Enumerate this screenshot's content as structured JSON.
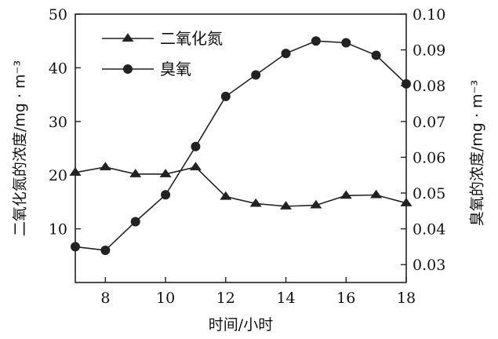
{
  "chart_data": {
    "type": "line",
    "xlabel": "时间/小时",
    "ylabel_left": "二氧化氮的浓度/mg · m⁻³",
    "ylabel_right": "臭氧的浓度/mg · m⁻³",
    "xlim": [
      7,
      18
    ],
    "xticks": [
      8,
      10,
      12,
      14,
      16,
      18
    ],
    "ylim_left": [
      0,
      50
    ],
    "yticks_left": [
      10,
      20,
      30,
      40,
      50
    ],
    "ylim_right": [
      0.025,
      0.1
    ],
    "yticks_right": [
      "0.03",
      "0.04",
      "0.05",
      "0.06",
      "0.07",
      "0.08",
      "0.09",
      "0.10"
    ],
    "legend_position": "top-left",
    "series": [
      {
        "name": "二氧化氮",
        "axis": "left",
        "marker": "triangle",
        "x": [
          7,
          8,
          9,
          10,
          11,
          12,
          13,
          14,
          15,
          16,
          17,
          18
        ],
        "y": [
          20.5,
          21.5,
          20.2,
          20.2,
          21.5,
          16.0,
          14.7,
          14.2,
          14.4,
          16.2,
          16.3,
          14.8
        ]
      },
      {
        "name": "臭氧",
        "axis": "right",
        "marker": "circle",
        "x": [
          7,
          8,
          9,
          10,
          11,
          12,
          13,
          14,
          15,
          16,
          17,
          18
        ],
        "y": [
          0.035,
          0.034,
          0.042,
          0.0495,
          0.063,
          0.077,
          0.083,
          0.089,
          0.0925,
          0.092,
          0.0885,
          0.0805
        ]
      }
    ]
  }
}
